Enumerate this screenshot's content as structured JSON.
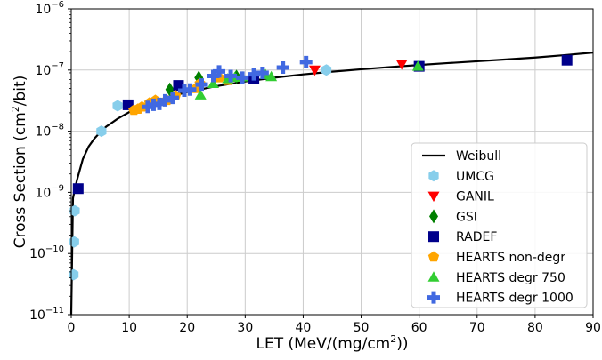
{
  "chart_data": {
    "type": "scatter",
    "xlabel": "LET (MeV/(mg/cm",
    "xlabel_sup": "2",
    "xlabel_tail": "))",
    "ylabel": "Cross Section (cm",
    "ylabel_sup": "2",
    "ylabel_tail": "/bit)",
    "xlim": [
      0,
      90
    ],
    "ylim": [
      1e-11,
      1e-06
    ],
    "yscale": "log",
    "grid": true,
    "legend_position": "lower-right",
    "x_ticks": [
      0,
      10,
      20,
      30,
      40,
      50,
      60,
      70,
      80,
      90
    ],
    "x_tick_labels": [
      "0",
      "10",
      "20",
      "30",
      "40",
      "50",
      "60",
      "70",
      "80",
      "90"
    ],
    "y_ticks": [
      -11,
      -10,
      -9,
      -8,
      -7,
      -6
    ],
    "y_tick_base": "10",
    "y_tick_exponents": [
      "−11",
      "−10",
      "−9",
      "−8",
      "−7",
      "−6"
    ],
    "fit": {
      "name": "Weibull",
      "color": "#000000",
      "points": [
        [
          0.0,
          1e-11
        ],
        [
          0.3,
          8e-10
        ],
        [
          0.6,
          1.1e-09
        ],
        [
          1,
          1.6e-09
        ],
        [
          2,
          3.5e-09
        ],
        [
          3,
          5.6e-09
        ],
        [
          4,
          7.6e-09
        ],
        [
          5,
          9.6e-09
        ],
        [
          6,
          1.18e-08
        ],
        [
          8,
          1.6e-08
        ],
        [
          10,
          2.05e-08
        ],
        [
          13,
          2.75e-08
        ],
        [
          16,
          3.45e-08
        ],
        [
          20,
          4.35e-08
        ],
        [
          25,
          5.45e-08
        ],
        [
          30,
          6.5e-08
        ],
        [
          35,
          7.5e-08
        ],
        [
          40,
          8.5e-08
        ],
        [
          45,
          9.4e-08
        ],
        [
          50,
          1.03e-07
        ],
        [
          55,
          1.12e-07
        ],
        [
          60,
          1.21e-07
        ],
        [
          65,
          1.3e-07
        ],
        [
          70,
          1.39e-07
        ],
        [
          75,
          1.49e-07
        ],
        [
          80,
          1.6e-07
        ],
        [
          85,
          1.75e-07
        ],
        [
          90,
          1.93e-07
        ]
      ]
    },
    "series": [
      {
        "name": "UMCG",
        "color": "#87ceeb",
        "marker": "hexagon",
        "points": [
          [
            0.4,
            4.5e-11
          ],
          [
            0.5,
            1.55e-10
          ],
          [
            0.6,
            5e-10
          ],
          [
            5.2,
            1e-08
          ],
          [
            8,
            2.6e-08
          ],
          [
            44,
            1e-07
          ]
        ]
      },
      {
        "name": "GANIL",
        "color": "#ff0000",
        "marker": "triangle-down",
        "points": [
          [
            27.5,
            7e-08
          ],
          [
            42,
            1e-07
          ],
          [
            57,
            1.25e-07
          ]
        ]
      },
      {
        "name": "GSI",
        "color": "#008000",
        "marker": "diamond",
        "points": [
          [
            17,
            4.8e-08
          ],
          [
            22,
            7.5e-08
          ],
          [
            28.5,
            7.8e-08
          ]
        ]
      },
      {
        "name": "RADEF",
        "color": "#00008b",
        "marker": "square",
        "points": [
          [
            1.2,
            1.15e-09
          ],
          [
            9.8,
            2.7e-08
          ],
          [
            18.5,
            5.6e-08
          ],
          [
            31.5,
            7.3e-08
          ],
          [
            60,
            1.15e-07
          ],
          [
            85.5,
            1.45e-07
          ]
        ]
      },
      {
        "name": "HEARTS non-degr",
        "color": "#ffa500",
        "marker": "pentagon",
        "points": [
          [
            10.8,
            2.2e-08
          ],
          [
            11.5,
            2.3e-08
          ],
          [
            12.2,
            2.5e-08
          ],
          [
            13.5,
            2.9e-08
          ],
          [
            14.5,
            3.2e-08
          ],
          [
            16.5,
            3.2e-08
          ],
          [
            18,
            3.8e-08
          ],
          [
            21.5,
            5e-08
          ],
          [
            22.2,
            6e-08
          ],
          [
            25.5,
            7.5e-08
          ],
          [
            27,
            6.8e-08
          ]
        ]
      },
      {
        "name": "HEARTS degr 750",
        "color": "#32cd32",
        "marker": "triangle-up",
        "points": [
          [
            22.3,
            3.9e-08
          ],
          [
            24.5,
            6e-08
          ],
          [
            27,
            7.2e-08
          ],
          [
            28.2,
            7.6e-08
          ],
          [
            29.5,
            7.7e-08
          ],
          [
            33.5,
            8.4e-08
          ],
          [
            34.5,
            7.8e-08
          ],
          [
            59.8,
            1.15e-07
          ]
        ]
      },
      {
        "name": "HEARTS degr 1000",
        "color": "#4169e1",
        "marker": "plus",
        "points": [
          [
            13.2,
            2.5e-08
          ],
          [
            14.2,
            2.7e-08
          ],
          [
            15.2,
            2.8e-08
          ],
          [
            16.2,
            3.2e-08
          ],
          [
            17.5,
            3.5e-08
          ],
          [
            19.5,
            4.6e-08
          ],
          [
            20.5,
            4.8e-08
          ],
          [
            22.5,
            5.8e-08
          ],
          [
            24.5,
            8e-08
          ],
          [
            25.5,
            9.5e-08
          ],
          [
            27.5,
            8e-08
          ],
          [
            29.5,
            7.5e-08
          ],
          [
            31.5,
            8.5e-08
          ],
          [
            33,
            9e-08
          ],
          [
            36.5,
            1.1e-07
          ],
          [
            40.5,
            1.35e-07
          ]
        ]
      }
    ]
  }
}
